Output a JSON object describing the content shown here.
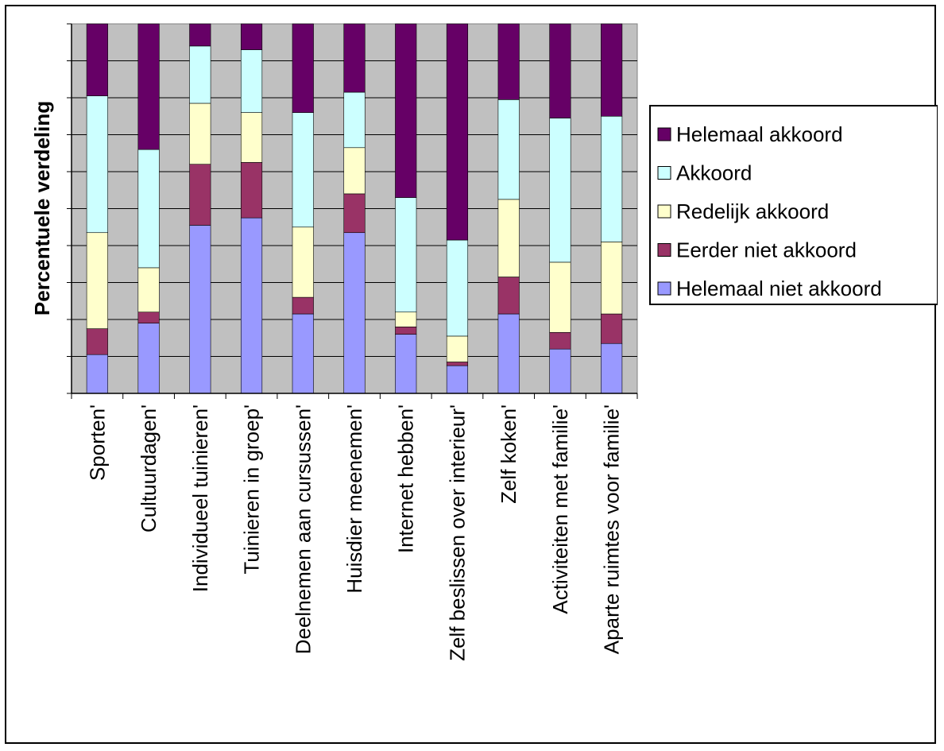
{
  "chart_data": {
    "type": "bar",
    "stacked": true,
    "percent_stacked": true,
    "title": "",
    "xlabel": "",
    "ylabel": "Percentuele verdeling",
    "ylim": [
      0,
      100
    ],
    "grid": true,
    "legend_position": "right",
    "categories": [
      "Sporten'",
      "Cultuurdagen'",
      "Individueel tuinieren'",
      "Tuinieren in groep'",
      "Deelnemen aan cursussen'",
      "Huisdier meenemen'",
      "Internet hebben'",
      "Zelf beslissen over interieur'",
      "Zelf koken'",
      "Activiteiten met familie'",
      "Aparte ruimtes voor familie'"
    ],
    "series": [
      {
        "name": "Helemaal niet akkoord",
        "color": "#9999ff",
        "values": [
          10.5,
          19,
          45.5,
          47.5,
          21.5,
          43.5,
          16,
          7.5,
          21.5,
          12,
          13.5
        ]
      },
      {
        "name": "Eerder niet akkoord",
        "color": "#993366",
        "values": [
          7,
          3,
          16.5,
          15,
          4.5,
          10.5,
          2,
          1,
          10,
          4.5,
          8
        ]
      },
      {
        "name": "Redelijk akkoord",
        "color": "#ffffcc",
        "values": [
          26,
          12,
          16.5,
          13.5,
          19,
          12.5,
          4,
          7,
          21,
          19,
          19.5
        ]
      },
      {
        "name": "Akkoord",
        "color": "#ccffff",
        "values": [
          37,
          32,
          15.5,
          17,
          31,
          15,
          31,
          26,
          27,
          39,
          34
        ]
      },
      {
        "name": "Helemaal akkoord",
        "color": "#660066",
        "values": [
          19.5,
          34,
          6,
          7,
          24,
          18.5,
          47,
          58.5,
          20.5,
          25.5,
          25
        ]
      }
    ]
  }
}
